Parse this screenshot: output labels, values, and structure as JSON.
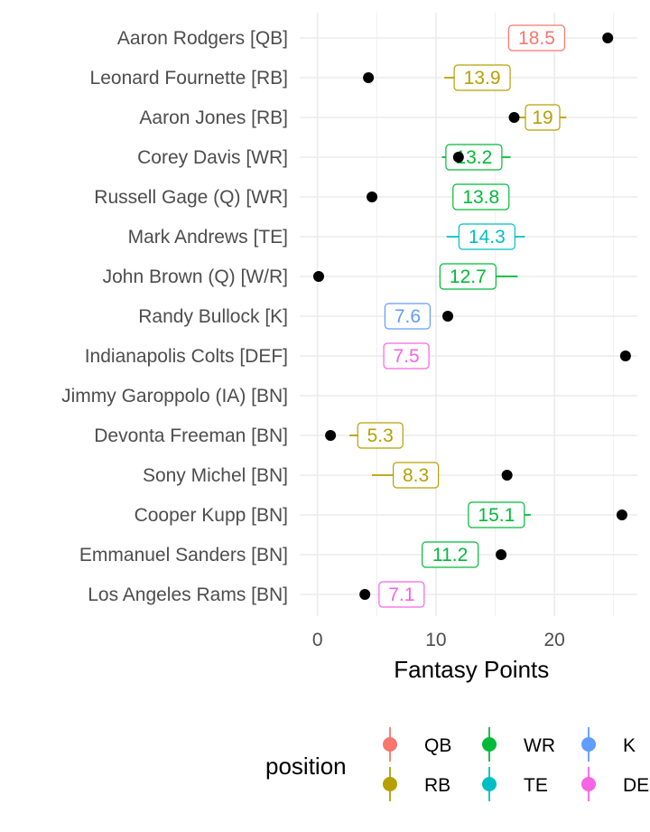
{
  "chart_data": {
    "type": "dot-range",
    "xlabel": "Fantasy Points",
    "x_ticks": [
      0,
      10,
      20
    ],
    "xlim": [
      -1.5,
      27
    ],
    "grid": true,
    "legend": {
      "title": "position",
      "placement": "bottom",
      "entries": [
        {
          "name": "QB",
          "color": "#F8766D"
        },
        {
          "name": "WR",
          "color": "#00BA38"
        },
        {
          "name": "K",
          "color": "#619CFF"
        },
        {
          "name": "RB",
          "color": "#B79F00"
        },
        {
          "name": "TE",
          "color": "#00BFC4"
        },
        {
          "name": "DEF",
          "color": "#F564E3"
        }
      ]
    },
    "players": [
      {
        "label": "Aaron Rodgers [QB]",
        "position": "QB",
        "projected": 18.5,
        "low": 16.5,
        "high": 20.0,
        "actual": 24.5
      },
      {
        "label": "Leonard Fournette [RB]",
        "position": "RB",
        "projected": 13.9,
        "low": 10.7,
        "high": 16.0,
        "actual": 4.3
      },
      {
        "label": "Aaron Jones [RB]",
        "position": "RB",
        "projected": 19,
        "low": 17.0,
        "high": 21.0,
        "actual": 16.6
      },
      {
        "label": "Corey Davis [WR]",
        "position": "WR",
        "projected": 13.2,
        "low": 10.5,
        "high": 16.3,
        "actual": 11.9
      },
      {
        "label": "Russell Gage (Q) [WR]",
        "position": "WR",
        "projected": 13.8,
        "low": 12.0,
        "high": 15.8,
        "actual": 4.6
      },
      {
        "label": "Mark Andrews [TE]",
        "position": "TE",
        "projected": 14.3,
        "low": 10.9,
        "high": 17.5,
        "actual": null
      },
      {
        "label": "John Brown (Q) [W/R]",
        "position": "WR",
        "projected": 12.7,
        "low": 10.3,
        "high": 16.9,
        "actual": 0.1
      },
      {
        "label": "Randy Bullock [K]",
        "position": "K",
        "projected": 7.6,
        "low": 6.0,
        "high": 9.0,
        "actual": 11.0
      },
      {
        "label": "Indianapolis Colts [DEF]",
        "position": "DEF",
        "projected": 7.5,
        "low": 6.0,
        "high": 9.0,
        "actual": 26.0
      },
      {
        "label": "Jimmy Garoppolo (IA) [BN]",
        "position": null,
        "projected": null,
        "low": null,
        "high": null,
        "actual": null
      },
      {
        "label": "Devonta Freeman [BN]",
        "position": "RB",
        "projected": 5.3,
        "low": 2.7,
        "high": 6.8,
        "actual": 1.1
      },
      {
        "label": "Sony Michel [BN]",
        "position": "RB",
        "projected": 8.3,
        "low": 4.6,
        "high": 10.2,
        "actual": 16.0
      },
      {
        "label": "Cooper Kupp [BN]",
        "position": "WR",
        "projected": 15.1,
        "low": 12.8,
        "high": 18.0,
        "actual": 25.7
      },
      {
        "label": "Emmanuel Sanders [BN]",
        "position": "WR",
        "projected": 11.2,
        "low": 9.0,
        "high": 13.4,
        "actual": 15.5
      },
      {
        "label": "Los Angeles Rams [BN]",
        "position": "DEF",
        "projected": 7.1,
        "low": 6.0,
        "high": 8.5,
        "actual": 4.0
      }
    ]
  }
}
